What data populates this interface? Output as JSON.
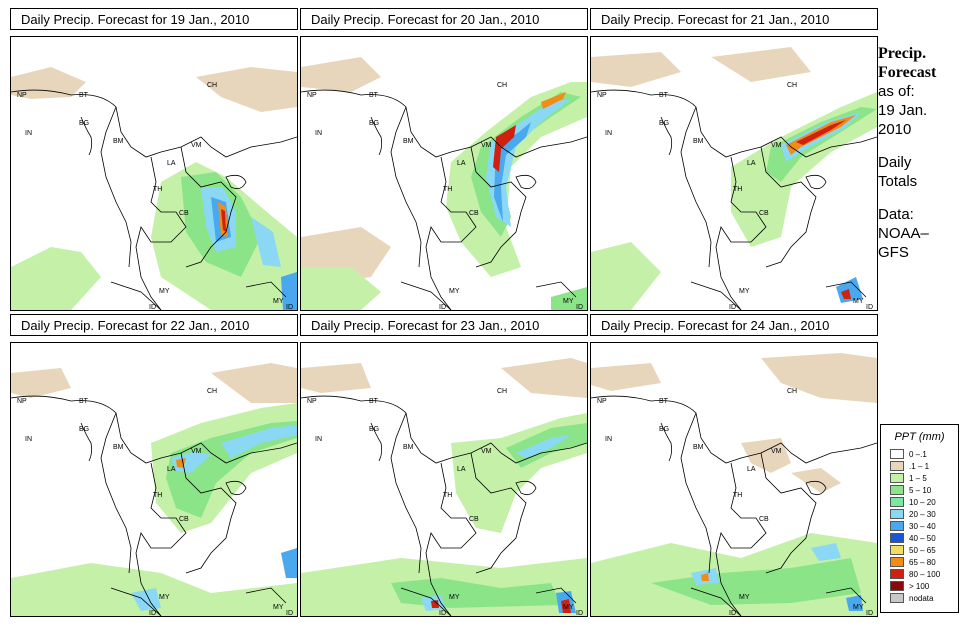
{
  "panels": [
    {
      "title": "Daily Precip. Forecast for  19 Jan., 2010"
    },
    {
      "title": "Daily Precip. Forecast for  20 Jan., 2010"
    },
    {
      "title": "Daily Precip. Forecast for  21 Jan., 2010"
    },
    {
      "title": "Daily Precip. Forecast for  22 Jan., 2010"
    },
    {
      "title": "Daily Precip. Forecast for  23 Jan., 2010"
    },
    {
      "title": "Daily Precip. Forecast for  24 Jan., 2010"
    }
  ],
  "country_labels": {
    "np": "NP",
    "bt": "BT",
    "bg": "BG",
    "in": "IN",
    "bm": "BM",
    "ch": "CH",
    "vm": "VM",
    "la": "LA",
    "th": "TH",
    "cb": "CB",
    "my": "MY",
    "id": "ID"
  },
  "sidebar": {
    "head1": "Precip.",
    "head2": "Forecast",
    "line1": "as of:",
    "line2": "19 Jan.",
    "line3": "2010",
    "line4": "Daily",
    "line5": "Totals",
    "line6": "Data:",
    "line7": "NOAA–",
    "line8": "GFS"
  },
  "legend": {
    "title": "PPT (mm)",
    "items": [
      {
        "label": "0 –.1",
        "color": "#ffffff"
      },
      {
        "label": ".1 – 1",
        "color": "#e8d6bc"
      },
      {
        "label": "1 – 5",
        "color": "#c4f0a8"
      },
      {
        "label": "5 – 10",
        "color": "#8ce488"
      },
      {
        "label": "10 – 20",
        "color": "#7be7a0"
      },
      {
        "label": "20 – 30",
        "color": "#8ad8f4"
      },
      {
        "label": "30 – 40",
        "color": "#4aa8ee"
      },
      {
        "label": "40 – 50",
        "color": "#1a55d8"
      },
      {
        "label": "50 – 65",
        "color": "#f0de60"
      },
      {
        "label": "65 – 80",
        "color": "#f08c18"
      },
      {
        "label": "80 – 100",
        "color": "#d02010"
      },
      {
        "label": "> 100",
        "color": "#8a0a08"
      },
      {
        "label": "nodata",
        "color": "#c8c8c8"
      }
    ]
  }
}
